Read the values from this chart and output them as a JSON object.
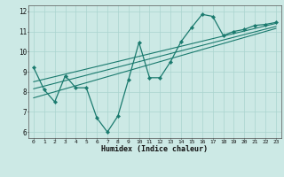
{
  "xlabel": "Humidex (Indice chaleur)",
  "bg_color": "#cce9e5",
  "grid_color": "#aad4cf",
  "line_color": "#1a7a6e",
  "xlim": [
    -0.5,
    23.5
  ],
  "ylim": [
    5.7,
    12.3
  ],
  "yticks": [
    6,
    7,
    8,
    9,
    10,
    11,
    12
  ],
  "xticks": [
    0,
    1,
    2,
    3,
    4,
    5,
    6,
    7,
    8,
    9,
    10,
    11,
    12,
    13,
    14,
    15,
    16,
    17,
    18,
    19,
    20,
    21,
    22,
    23
  ],
  "series1_x": [
    0,
    1,
    2,
    3,
    4,
    5,
    6,
    7,
    8,
    9,
    10,
    11,
    12,
    13,
    14,
    15,
    16,
    17,
    18,
    19,
    20,
    21,
    22,
    23
  ],
  "series1_y": [
    9.2,
    8.1,
    7.5,
    8.8,
    8.2,
    8.2,
    6.7,
    6.0,
    6.8,
    8.6,
    10.45,
    8.7,
    8.7,
    9.5,
    10.5,
    11.2,
    11.85,
    11.75,
    10.8,
    11.0,
    11.1,
    11.3,
    11.35,
    11.45
  ],
  "trend1_x": [
    0,
    23
  ],
  "trend1_y": [
    8.15,
    11.25
  ],
  "trend2_x": [
    0,
    23
  ],
  "trend2_y": [
    8.5,
    11.4
  ],
  "trend3_x": [
    0,
    23
  ],
  "trend3_y": [
    7.7,
    11.15
  ]
}
